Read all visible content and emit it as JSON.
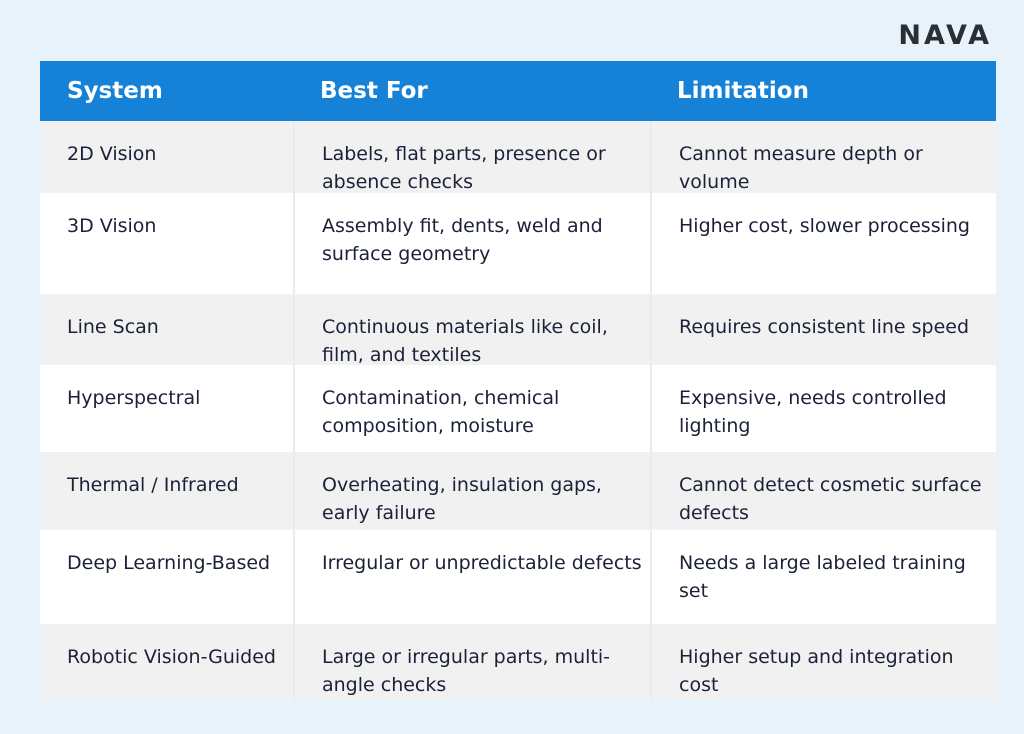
{
  "brand": {
    "logo_text": "NAVA"
  },
  "table": {
    "headers": [
      "System",
      "Best For",
      "Limitation"
    ],
    "rows": [
      [
        "2D Vision",
        "Labels, flat parts, presence or absence checks",
        "Cannot measure depth or volume"
      ],
      [
        "3D Vision",
        "Assembly fit, dents, weld and surface geometry",
        "Higher cost, slower processing"
      ],
      [
        "Line Scan",
        "Continuous materials like coil, film, and textiles",
        "Requires consistent line speed"
      ],
      [
        "Hyperspectral",
        "Contamination, chemical composition, moisture",
        "Expensive, needs controlled lighting"
      ],
      [
        "Thermal / Infrared",
        "Overheating, insulation gaps, early failure",
        "Cannot detect cosmetic surface defects"
      ],
      [
        "Deep Learning-Based",
        "Irregular or unpredictable defects",
        "Needs a large labeled training set"
      ],
      [
        "Robotic Vision-Guided",
        "Large or irregular parts, multi-angle checks",
        "Higher setup and integration cost"
      ]
    ]
  },
  "colors": {
    "header_bg": "#1582d8",
    "page_bg": "#e8f2fb",
    "row_alt_bg": "#f1f1f2",
    "text": "#1b2238"
  }
}
